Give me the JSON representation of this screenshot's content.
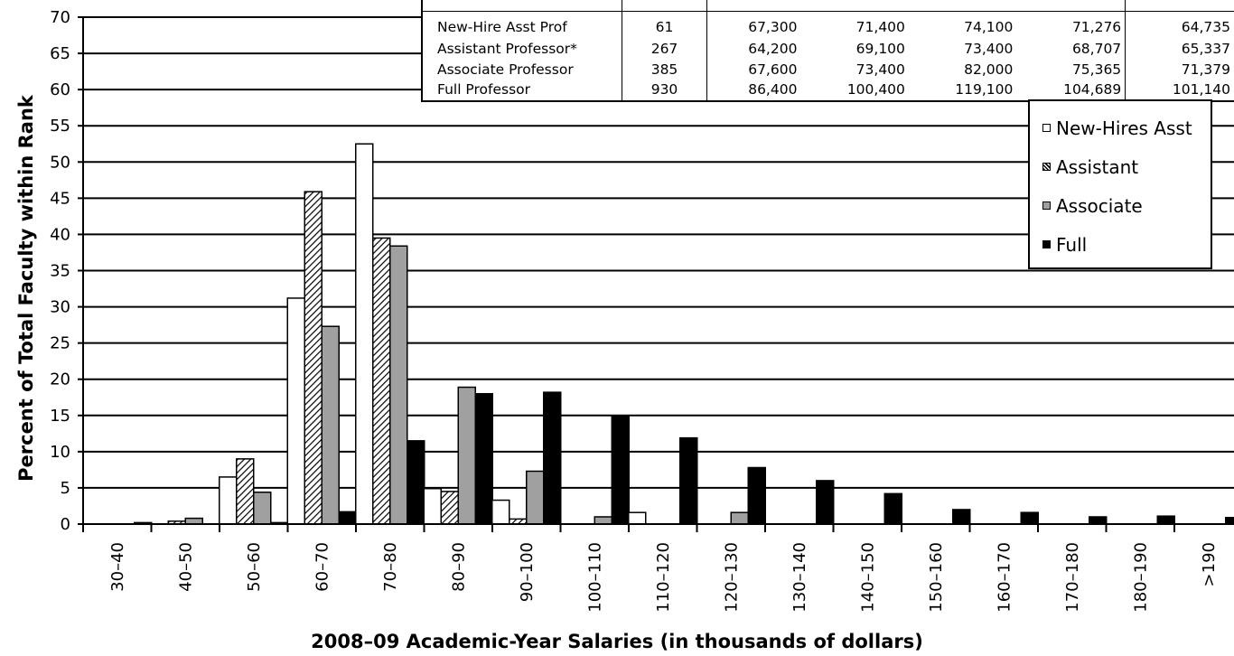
{
  "chart_data": {
    "type": "bar",
    "ylabel": "Percent of Total Faculty within Rank",
    "xlabel": "2008–09 Academic-Year Salaries (in thousands of dollars)",
    "ylim": [
      0,
      70
    ],
    "yticks": [
      "0",
      "5",
      "10",
      "15",
      "20",
      "25",
      "30",
      "35",
      "40",
      "45",
      "50",
      "55",
      "60",
      "65",
      "70"
    ],
    "grid": true,
    "legend_position": "top-right",
    "categories": [
      "30–40",
      "40–50",
      "50–60",
      "60–70",
      "70–80",
      "80–90",
      "90–100",
      "100–110",
      "110–120",
      "120–130",
      "130–140",
      "140–150",
      "150–160",
      "160–170",
      "170–180",
      "180–190",
      ">190"
    ],
    "series": [
      {
        "name": "New-Hires Asst",
        "fill": "#ffffff",
        "values": [
          0,
          0,
          6.5,
          31.2,
          52.5,
          4.9,
          3.3,
          0,
          1.6,
          0,
          0,
          0,
          0,
          0,
          0,
          0,
          0
        ]
      },
      {
        "name": "Assistant",
        "fill": "hatch",
        "values": [
          0,
          0.4,
          9.0,
          45.9,
          39.5,
          4.5,
          0.7,
          0,
          0,
          0,
          0,
          0,
          0,
          0,
          0,
          0,
          0
        ]
      },
      {
        "name": "Associate",
        "fill": "#a0a0a0",
        "values": [
          0,
          0.8,
          4.4,
          27.3,
          38.4,
          18.9,
          7.3,
          1.0,
          0,
          1.6,
          0,
          0,
          0,
          0,
          0,
          0,
          0
        ]
      },
      {
        "name": "Full",
        "fill": "#000000",
        "values": [
          0.2,
          0,
          0.2,
          1.7,
          11.5,
          18.0,
          18.2,
          15.0,
          11.9,
          7.8,
          6.0,
          4.2,
          2.0,
          1.6,
          1.0,
          1.1,
          0.9
        ]
      }
    ]
  },
  "stats_table": {
    "rows": [
      {
        "rank": "New-Hire Asst Prof",
        "n": "61",
        "v1": "67,300",
        "v2": "71,400",
        "v3": "74,100",
        "v4": "71,276",
        "v5": "64,735"
      },
      {
        "rank": "Assistant Professor*",
        "n": "267",
        "v1": "64,200",
        "v2": "69,100",
        "v3": "73,400",
        "v4": "68,707",
        "v5": "65,337"
      },
      {
        "rank": "Associate Professor",
        "n": "385",
        "v1": "67,600",
        "v2": "73,400",
        "v3": "82,000",
        "v4": "75,365",
        "v5": "71,379"
      },
      {
        "rank": "Full Professor",
        "n": "930",
        "v1": "86,400",
        "v2": "100,400",
        "v3": "119,100",
        "v4": "104,689",
        "v5": "101,140"
      }
    ]
  },
  "legend": {
    "items": [
      {
        "label": "New-Hires Asst"
      },
      {
        "label": "Assistant"
      },
      {
        "label": "Associate"
      },
      {
        "label": "Full"
      }
    ]
  }
}
